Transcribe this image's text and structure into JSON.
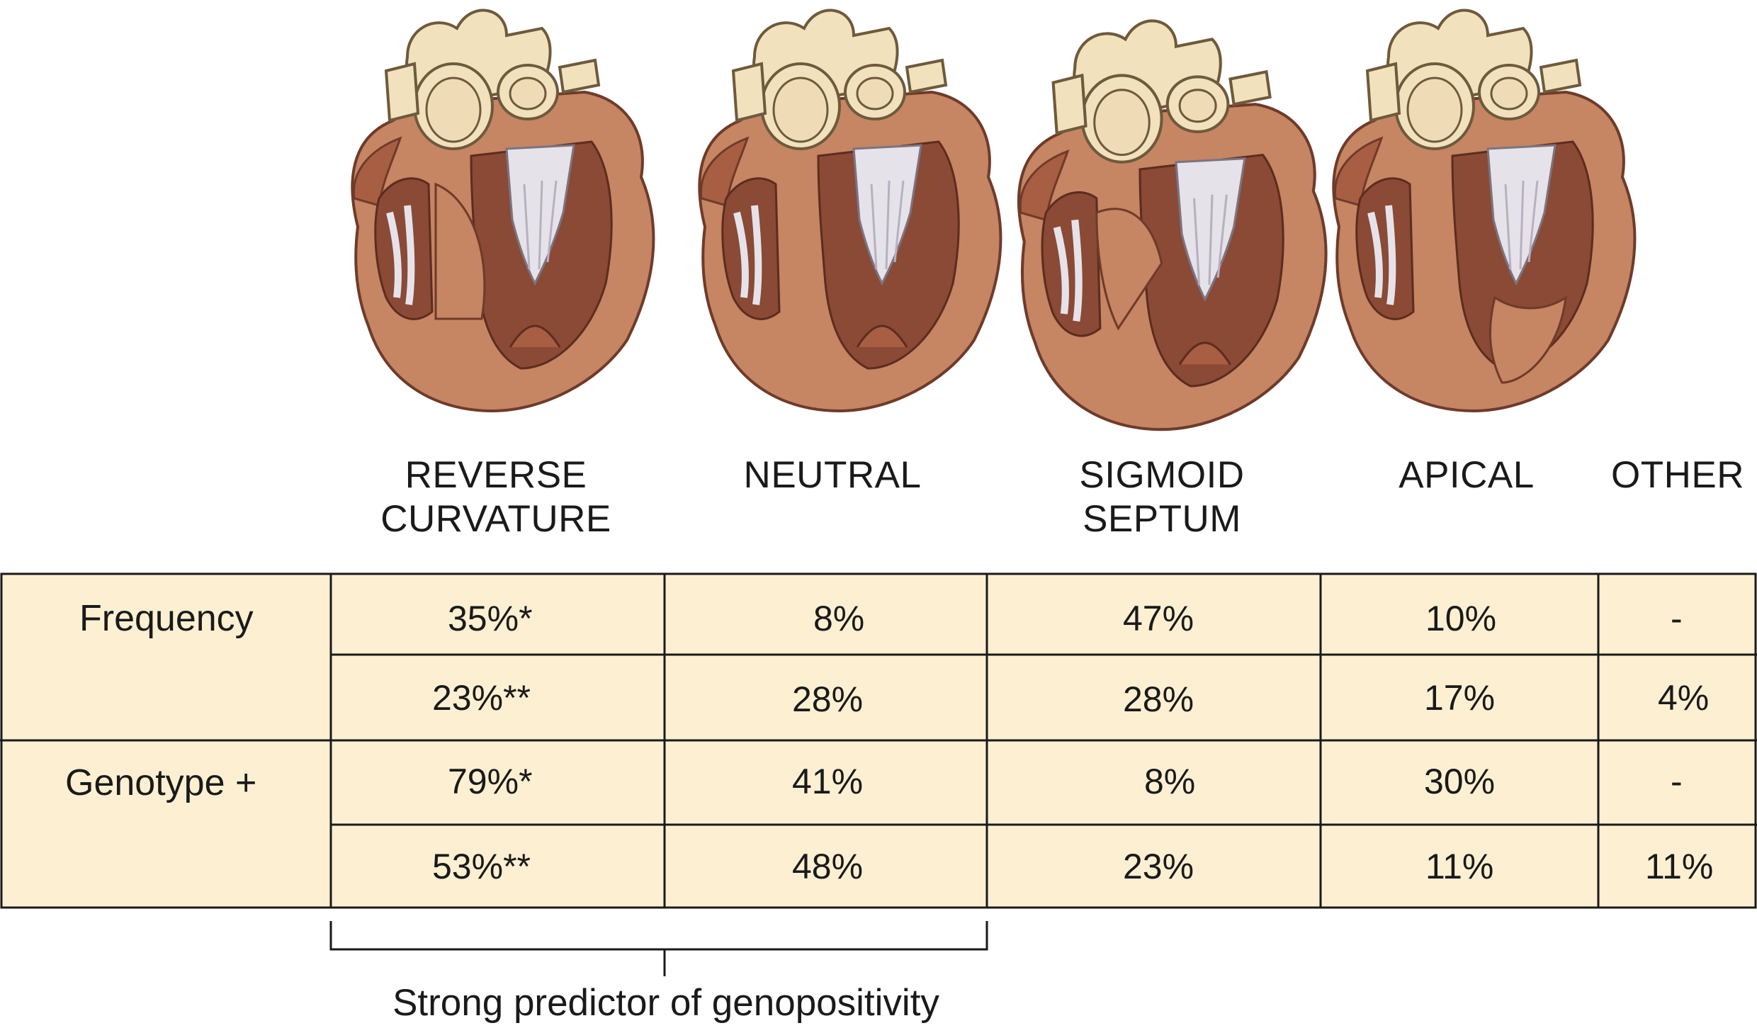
{
  "columns": {
    "reverse": [
      "REVERSE",
      "CURVATURE"
    ],
    "neutral": [
      "NEUTRAL"
    ],
    "sigmoid": [
      "SIGMOID",
      "SEPTUM"
    ],
    "apical": [
      "APICAL"
    ],
    "other": [
      "OTHER"
    ]
  },
  "rows": {
    "frequency_label": "Frequency",
    "genotype_label": "Genotype +"
  },
  "table": {
    "freq_1": [
      "35%*",
      "8%",
      "47%",
      "10%",
      "-"
    ],
    "freq_2": [
      "23%**",
      "28%",
      "28%",
      "17%",
      "4%"
    ],
    "geno_1": [
      "79%*",
      "41%",
      "8%",
      "30%",
      "-"
    ],
    "geno_2": [
      "53%**",
      "48%",
      "23%",
      "11%",
      "11%"
    ]
  },
  "caption": "Strong predictor of genopositivity",
  "colors": {
    "table_fill": "#fdf0d2",
    "myocardium": "#c68563",
    "myocardium_dark": "#8a4a35",
    "vessels": "#f2e1bd",
    "valve": "#e6e2ea"
  },
  "icons": [
    "heart-reverse-curvature-icon",
    "heart-neutral-icon",
    "heart-sigmoid-septum-icon",
    "heart-apical-icon"
  ]
}
